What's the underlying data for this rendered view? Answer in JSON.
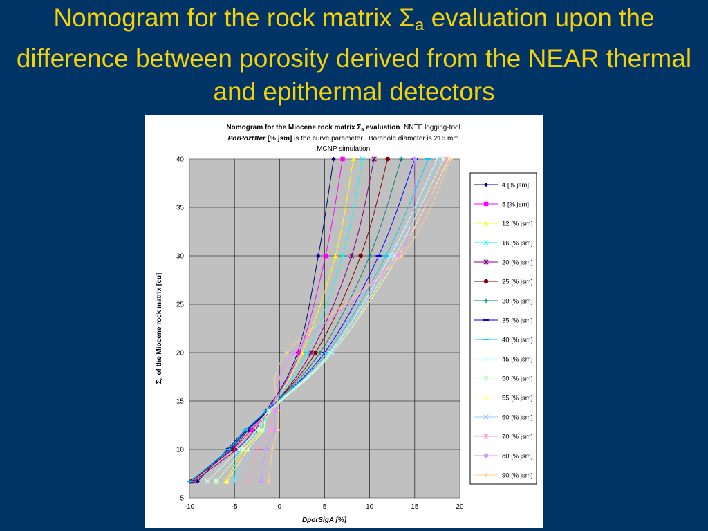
{
  "slide": {
    "title_part1": "Nomogram for the rock matrix ",
    "title_sigma": "Σ",
    "title_sub": "a",
    "title_part2": " evaluation upon the difference between porosity derived from the NEAR thermal and epithermal detectors"
  },
  "colors": {
    "background": "#003366",
    "title": "#f5d10a",
    "plot_area": "#c0c0c0"
  },
  "chart_data": {
    "type": "line",
    "title_line1_bold": "Nomogram for the Miocene rock matrix ",
    "title_line1_sigma": "Σ",
    "title_line1_sub": "a",
    "title_line1_bold2": " evaluation",
    "title_line1_rest": ". NNTE logging-tool.",
    "title_line2_bi": "PorPozBter",
    "title_line2_b": " [% jsm]",
    "title_line2_rest": " is the curve parameter . Borehole diameter is 216 mm.",
    "title_line3": "MCNP simulation.",
    "xlabel": "DporSigA  [%]",
    "ylabel_sigma": "Σ",
    "ylabel_sub": "a",
    "ylabel_rest": " of the Miocene rock matrix [cu]",
    "xlim": [
      -10,
      20
    ],
    "ylim": [
      5,
      40
    ],
    "xticks": [
      "-10",
      "-5",
      "0",
      "5",
      "10",
      "15",
      "20"
    ],
    "yticks": [
      "5",
      "10",
      "15",
      "20",
      "25",
      "30",
      "35",
      "40"
    ],
    "grid": true,
    "legend_position": "right",
    "y_levels": [
      6.7,
      10,
      12,
      14,
      20,
      30,
      40
    ],
    "series": [
      {
        "name": "4 [% jsm]",
        "color": "#000080",
        "marker": "diamond",
        "x": [
          -9.1,
          -5.8,
          -3.8,
          -1.5,
          2.0,
          4.3,
          6.0
        ]
      },
      {
        "name": "8 [% jsm]",
        "color": "#ff00ff",
        "marker": "square",
        "x": [
          -9.8,
          -5.2,
          -3.2,
          -1.3,
          2.2,
          5.1,
          7.0
        ]
      },
      {
        "name": "12 [% jsm]",
        "color": "#ffff00",
        "marker": "triangle",
        "x": [
          -6.0,
          -3.9,
          -1.9,
          -1.0,
          2.5,
          6.2,
          8.2
        ]
      },
      {
        "name": "16 [% jsm]",
        "color": "#00ffff",
        "marker": "x",
        "x": [
          -5.0,
          -4.5,
          -2.2,
          -1.2,
          3.0,
          7.0,
          9.2
        ]
      },
      {
        "name": "20 [% jsm]",
        "color": "#800080",
        "marker": "star",
        "x": [
          -9.5,
          -4.8,
          -2.8,
          -1.1,
          3.5,
          8.0,
          10.5
        ]
      },
      {
        "name": "25 [% jsm]",
        "color": "#800000",
        "marker": "circle",
        "x": [
          -9.8,
          -5.3,
          -3.5,
          -1.3,
          4.0,
          9.0,
          12.0
        ]
      },
      {
        "name": "30 [% jsm]",
        "color": "#008080",
        "marker": "plus",
        "x": [
          -9.9,
          -5.5,
          -3.6,
          -1.4,
          4.5,
          10.0,
          13.5
        ]
      },
      {
        "name": "35 [% jsm]",
        "color": "#0000ff",
        "marker": "dash",
        "x": [
          -9.9,
          -5.6,
          -3.7,
          -1.4,
          5.0,
          11.0,
          15.0
        ]
      },
      {
        "name": "40 [% jsm]",
        "color": "#00ccff",
        "marker": "dash",
        "x": [
          -9.9,
          -5.7,
          -3.8,
          -1.5,
          5.3,
          11.8,
          16.5
        ]
      },
      {
        "name": "45 [% jsm]",
        "color": "#ccffff",
        "marker": "x",
        "x": [
          -8.0,
          -4.5,
          -2.5,
          -1.2,
          5.6,
          12.3,
          17.5
        ]
      },
      {
        "name": "50 [% jsm]",
        "color": "#ccffcc",
        "marker": "square",
        "x": [
          -7.0,
          -4.0,
          -2.2,
          -1.1,
          5.8,
          12.8,
          18.2
        ]
      },
      {
        "name": "55 [% jsm]",
        "color": "#ffff99",
        "marker": "triangle",
        "x": [
          -5.8,
          -3.5,
          -1.8,
          -0.9,
          5.9,
          13.2,
          18.8
        ]
      },
      {
        "name": "60 [% jsm]",
        "color": "#99ccff",
        "marker": "x",
        "x": [
          -5.0,
          -3.0,
          -1.5,
          -0.8,
          5.9,
          12.5,
          17.8
        ]
      },
      {
        "name": "70 [% jsm]",
        "color": "#ff99cc",
        "marker": "star",
        "x": [
          -3.5,
          -2.5,
          -1.0,
          -0.7,
          1.7,
          13.0,
          18.5
        ]
      },
      {
        "name": "80 [% jsm]",
        "color": "#cc99ff",
        "marker": "circle",
        "x": [
          -2.0,
          -1.5,
          -0.5,
          -0.4,
          1.5,
          13.3,
          15.0
        ]
      },
      {
        "name": "90 [% jsm]",
        "color": "#ffcc99",
        "marker": "plus",
        "x": [
          -1.2,
          -0.8,
          -0.2,
          -0.1,
          0.8,
          13.5,
          19.0
        ]
      }
    ]
  }
}
